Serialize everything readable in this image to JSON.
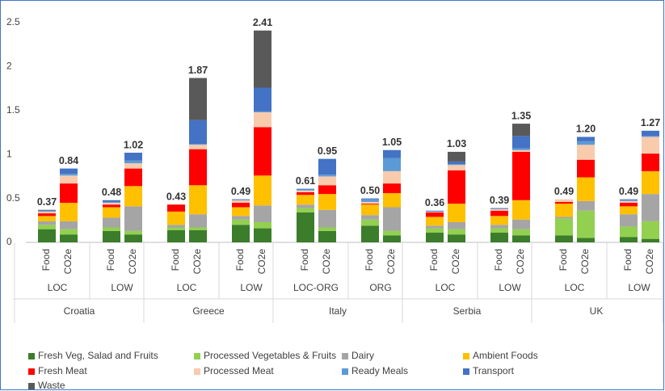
{
  "chart_data": {
    "type": "stacked_bar",
    "categories": [
      "Food",
      "CO2e",
      "Food",
      "CO2e",
      "Food",
      "CO2e",
      "Food",
      "CO2e",
      "Food",
      "CO2e",
      "Food",
      "CO2e",
      "Food",
      "CO2e",
      "Food",
      "CO2e",
      "Food",
      "CO2e",
      "Food",
      "CO2e"
    ],
    "groups": [
      {
        "name": "Croatia",
        "subgroups": [
          "LOC",
          "LOW"
        ]
      },
      {
        "name": "Greece",
        "subgroups": [
          "LOC",
          "LOW"
        ]
      },
      {
        "name": "Italy",
        "subgroups": [
          "LOC-ORG",
          "ORG"
        ]
      },
      {
        "name": "Serbia",
        "subgroups": [
          "LOC",
          "LOW"
        ]
      },
      {
        "name": "UK",
        "subgroups": [
          "LOC",
          "LOW"
        ]
      }
    ],
    "series": [
      {
        "name": "Fresh Veg, Salad and Fruits",
        "color": "#3b7d2a",
        "values": [
          0.15,
          0.09,
          0.13,
          0.09,
          0.14,
          0.14,
          0.2,
          0.16,
          0.34,
          0.13,
          0.19,
          0.08,
          0.11,
          0.09,
          0.11,
          0.08,
          0.08,
          0.05,
          0.06,
          0.04
        ]
      },
      {
        "name": "Processed Vegetables & Fruits",
        "color": "#92d050",
        "values": [
          0.05,
          0.06,
          0.04,
          0.04,
          0.03,
          0.03,
          0.06,
          0.07,
          0.05,
          0.04,
          0.07,
          0.05,
          0.05,
          0.06,
          0.05,
          0.07,
          0.19,
          0.31,
          0.12,
          0.2
        ]
      },
      {
        "name": "Dairy",
        "color": "#a5a5a5",
        "values": [
          0.04,
          0.09,
          0.11,
          0.28,
          0.03,
          0.15,
          0.04,
          0.19,
          0.04,
          0.2,
          0.05,
          0.27,
          0.03,
          0.08,
          0.04,
          0.11,
          0.02,
          0.11,
          0.14,
          0.31
        ]
      },
      {
        "name": "Ambient Foods",
        "color": "#ffc000",
        "values": [
          0.06,
          0.21,
          0.12,
          0.23,
          0.15,
          0.33,
          0.1,
          0.34,
          0.11,
          0.18,
          0.12,
          0.16,
          0.1,
          0.21,
          0.1,
          0.22,
          0.15,
          0.27,
          0.09,
          0.26
        ]
      },
      {
        "name": "Fresh Meat",
        "color": "#ff0000",
        "values": [
          0.03,
          0.22,
          0.03,
          0.2,
          0.08,
          0.41,
          0.05,
          0.55,
          0.03,
          0.1,
          0.01,
          0.11,
          0.05,
          0.38,
          0.06,
          0.55,
          0.02,
          0.2,
          0.04,
          0.2
        ]
      },
      {
        "name": "Processed Meat",
        "color": "#f8cbad",
        "values": [
          0.02,
          0.09,
          0.02,
          0.06,
          0,
          0.05,
          0.03,
          0.17,
          0.02,
          0.1,
          0.02,
          0.14,
          0.01,
          0.06,
          0.02,
          0.02,
          0.03,
          0.17,
          0.02,
          0.19
        ]
      },
      {
        "name": "Ready Meals",
        "color": "#5b9bd5",
        "values": [
          0.005,
          0.02,
          0.01,
          0.03,
          0,
          0.01,
          0,
          0.01,
          0.01,
          0.02,
          0.03,
          0.15,
          0,
          0.01,
          0,
          0.02,
          0,
          0.04,
          0.01,
          0.01
        ]
      },
      {
        "name": "Transport",
        "color": "#4472c4",
        "values": [
          0.01,
          0.06,
          0.02,
          0.09,
          0,
          0.27,
          0.01,
          0.27,
          0.01,
          0.18,
          0.01,
          0.09,
          0.01,
          0.03,
          0.01,
          0.14,
          0,
          0.05,
          0.01,
          0.06
        ]
      },
      {
        "name": "Waste",
        "color": "#595959",
        "values": [
          0.005,
          0,
          0,
          0,
          0,
          0.48,
          0,
          0.65,
          0,
          0,
          0,
          0,
          0,
          0.11,
          0,
          0.14,
          0,
          0,
          0,
          0
        ]
      }
    ],
    "totals": [
      0.37,
      0.84,
      0.48,
      1.02,
      0.43,
      1.87,
      0.49,
      2.41,
      0.61,
      0.95,
      0.5,
      1.05,
      0.36,
      1.03,
      0.39,
      1.35,
      0.49,
      1.2,
      0.49,
      1.27
    ],
    "total_labels": [
      "0.37",
      "0.84",
      "0.48",
      "1.02",
      "0.43",
      "1.87",
      "0.49",
      "2.41",
      "0.61",
      "0.95",
      "0.50",
      "1.05",
      "0.36",
      "1.03",
      "0.39",
      "1.35",
      "0.49",
      "1.20",
      "0.49",
      "1.27"
    ],
    "ylim": [
      0,
      2.5
    ],
    "yticks": [
      0,
      0.5,
      1,
      1.5,
      2,
      2.5
    ],
    "grid": false
  }
}
